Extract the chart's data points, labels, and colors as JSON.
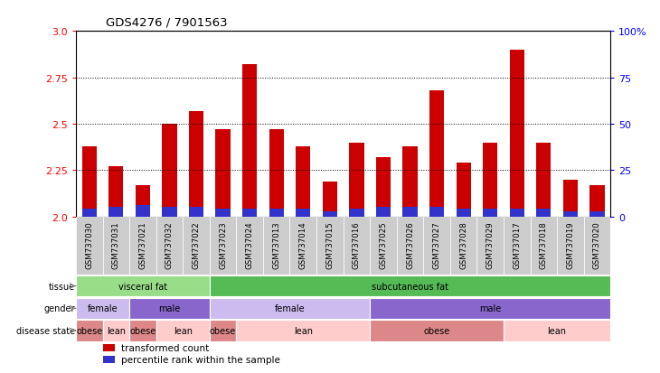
{
  "title": "GDS4276 / 7901563",
  "samples": [
    "GSM737030",
    "GSM737031",
    "GSM737021",
    "GSM737032",
    "GSM737022",
    "GSM737023",
    "GSM737024",
    "GSM737013",
    "GSM737014",
    "GSM737015",
    "GSM737016",
    "GSM737025",
    "GSM737026",
    "GSM737027",
    "GSM737028",
    "GSM737029",
    "GSM737017",
    "GSM737018",
    "GSM737019",
    "GSM737020"
  ],
  "transformed_count": [
    2.38,
    2.27,
    2.17,
    2.5,
    2.57,
    2.47,
    2.82,
    2.47,
    2.38,
    2.19,
    2.4,
    2.32,
    2.38,
    2.68,
    2.29,
    2.4,
    2.9,
    2.4,
    2.2,
    2.17
  ],
  "percentile_rank_pct": [
    4,
    5,
    6,
    5,
    5,
    4,
    4,
    4,
    4,
    3,
    4,
    5,
    5,
    5,
    4,
    4,
    4,
    4,
    3,
    3
  ],
  "ylim": [
    2.0,
    3.0
  ],
  "yticks": [
    2.0,
    2.25,
    2.5,
    2.75,
    3.0
  ],
  "right_yticks_pct": [
    0,
    25,
    50,
    75,
    100
  ],
  "right_yticklabels": [
    "0",
    "25",
    "50",
    "75",
    "100%"
  ],
  "bar_color": "#cc0000",
  "blue_color": "#3333cc",
  "tissue_row": {
    "label": "tissue",
    "segments": [
      {
        "text": "visceral fat",
        "start": 0,
        "end": 5,
        "color": "#99dd88"
      },
      {
        "text": "subcutaneous fat",
        "start": 5,
        "end": 20,
        "color": "#55bb55"
      }
    ]
  },
  "gender_row": {
    "label": "gender",
    "segments": [
      {
        "text": "female",
        "start": 0,
        "end": 2,
        "color": "#ccbbee"
      },
      {
        "text": "male",
        "start": 2,
        "end": 5,
        "color": "#8866cc"
      },
      {
        "text": "female",
        "start": 5,
        "end": 11,
        "color": "#ccbbee"
      },
      {
        "text": "male",
        "start": 11,
        "end": 20,
        "color": "#8866cc"
      }
    ]
  },
  "disease_row": {
    "label": "disease state",
    "segments": [
      {
        "text": "obese",
        "start": 0,
        "end": 1,
        "color": "#dd8888"
      },
      {
        "text": "lean",
        "start": 1,
        "end": 2,
        "color": "#ffcccc"
      },
      {
        "text": "obese",
        "start": 2,
        "end": 3,
        "color": "#dd8888"
      },
      {
        "text": "lean",
        "start": 3,
        "end": 5,
        "color": "#ffcccc"
      },
      {
        "text": "obese",
        "start": 5,
        "end": 6,
        "color": "#dd8888"
      },
      {
        "text": "lean",
        "start": 6,
        "end": 11,
        "color": "#ffcccc"
      },
      {
        "text": "obese",
        "start": 11,
        "end": 16,
        "color": "#dd8888"
      },
      {
        "text": "lean",
        "start": 16,
        "end": 20,
        "color": "#ffcccc"
      }
    ]
  },
  "legend_items": [
    {
      "label": "transformed count",
      "color": "#cc0000"
    },
    {
      "label": "percentile rank within the sample",
      "color": "#3333cc"
    }
  ],
  "tick_bg_color": "#cccccc",
  "chart_bg": "#ffffff"
}
